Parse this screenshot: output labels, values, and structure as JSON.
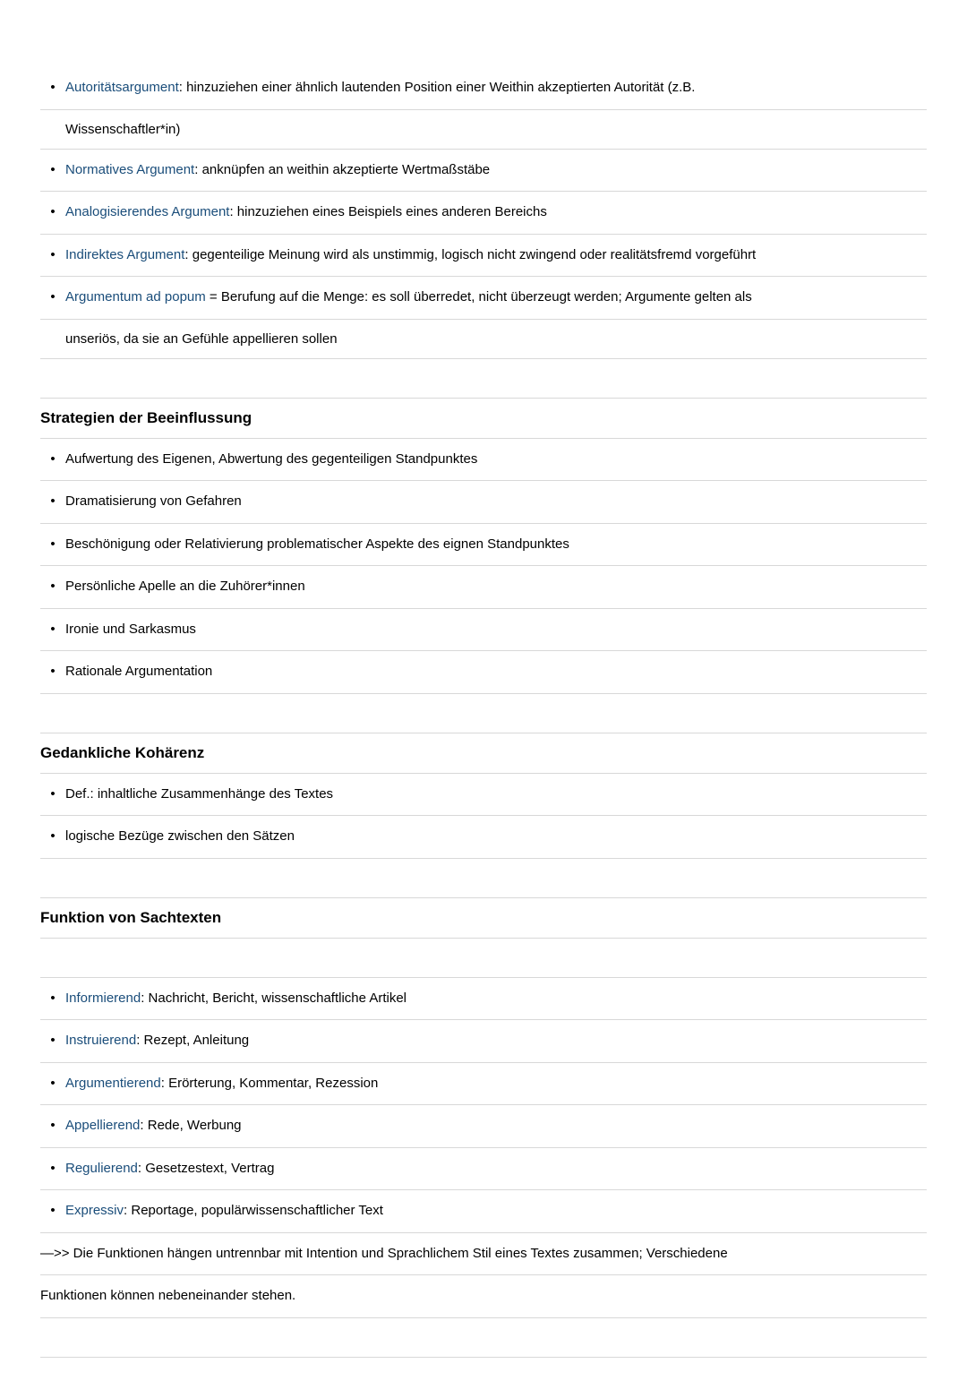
{
  "section1": {
    "items": [
      {
        "term": "Autoritätsargument",
        "text": ": hinzuziehen einer ähnlich lautenden Position einer Weithin akzeptierten Autorität (z.B.",
        "cont": "Wissenschaftler*in)"
      },
      {
        "term": "Normatives Argument",
        "text": ": anknüpfen an weithin akzeptierte Wertmaßstäbe",
        "cont": null
      },
      {
        "term": "Analogisierendes Argument",
        "text": ": hinzuziehen eines Beispiels eines anderen Bereichs",
        "cont": null
      },
      {
        "term": "Indirektes Argument",
        "text": ": gegenteilige Meinung wird als unstimmig, logisch nicht zwingend oder realitätsfremd vorgeführt",
        "cont": null
      },
      {
        "term": "Argumentum ad popum",
        "text": " = Berufung auf die Menge: es soll überredet, nicht überzeugt werden; Argumente gelten als",
        "cont": "unseriös, da sie an Gefühle appellieren sollen"
      }
    ]
  },
  "section2": {
    "heading": "Strategien der Beeinflussung",
    "items": [
      "Aufwertung des Eigenen, Abwertung des gegenteiligen Standpunktes",
      "Dramatisierung von Gefahren",
      "Beschönigung oder Relativierung problematischer Aspekte des eignen Standpunktes",
      "Persönliche Apelle an die Zuhörer*innen",
      "Ironie und Sarkasmus",
      "Rationale Argumentation"
    ]
  },
  "section3": {
    "heading": "Gedankliche Kohärenz",
    "items": [
      "Def.: inhaltliche Zusammenhänge des Textes",
      "logische Bezüge zwischen den Sätzen"
    ]
  },
  "section4": {
    "heading": "Funktion von Sachtexten",
    "items": [
      {
        "term": "Informierend",
        "text": ": Nachricht, Bericht, wissenschaftliche Artikel"
      },
      {
        "term": "Instruierend",
        "text": ": Rezept, Anleitung"
      },
      {
        "term": "Argumentierend",
        "text": ": Erörterung, Kommentar, Rezession"
      },
      {
        "term": "Appellierend",
        "text": ": Rede, Werbung"
      },
      {
        "term": "Regulierend",
        "text": ": Gesetzestext, Vertrag"
      },
      {
        "term": "Expressiv",
        "text": ": Reportage, populärwissenschaftlicher Text"
      }
    ],
    "note1": "—>> Die Funktionen hängen untrennbar mit Intention und Sprachlichem Stil eines Textes zusammen; Verschiedene",
    "note2": "Funktionen können nebeneinander stehen."
  },
  "bullet_char": "•"
}
